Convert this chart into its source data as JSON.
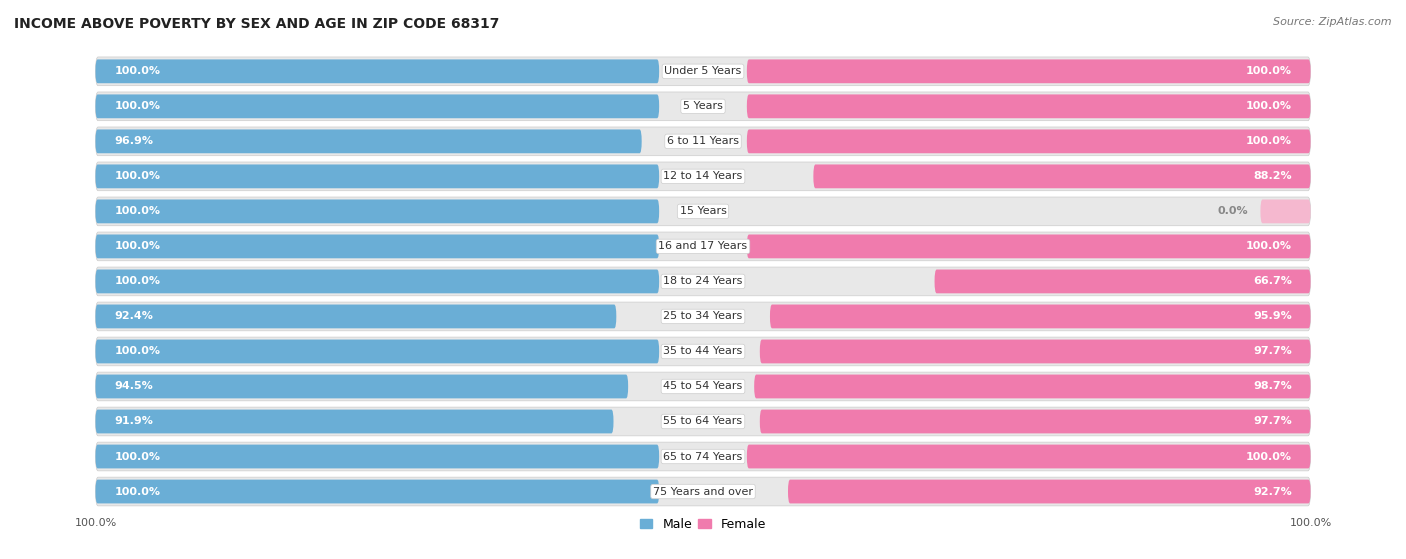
{
  "title": "INCOME ABOVE POVERTY BY SEX AND AGE IN ZIP CODE 68317",
  "source": "Source: ZipAtlas.com",
  "categories": [
    "Under 5 Years",
    "5 Years",
    "6 to 11 Years",
    "12 to 14 Years",
    "15 Years",
    "16 and 17 Years",
    "18 to 24 Years",
    "25 to 34 Years",
    "35 to 44 Years",
    "45 to 54 Years",
    "55 to 64 Years",
    "65 to 74 Years",
    "75 Years and over"
  ],
  "male_values": [
    100.0,
    100.0,
    96.9,
    100.0,
    100.0,
    100.0,
    100.0,
    92.4,
    100.0,
    94.5,
    91.9,
    100.0,
    100.0
  ],
  "female_values": [
    100.0,
    100.0,
    100.0,
    88.2,
    0.0,
    100.0,
    66.7,
    95.9,
    97.7,
    98.7,
    97.7,
    100.0,
    92.7
  ],
  "male_color": "#6aaed6",
  "female_color": "#f07bad",
  "female_zero_color": "#f5b8cf",
  "male_label": "Male",
  "female_label": "Female",
  "row_bg_color": "#e8e8e8",
  "bar_bg_color": "#f0f0f0",
  "title_fontsize": 10,
  "category_fontsize": 8,
  "value_label_fontsize": 8,
  "axis_label_fontsize": 8,
  "source_fontsize": 8
}
